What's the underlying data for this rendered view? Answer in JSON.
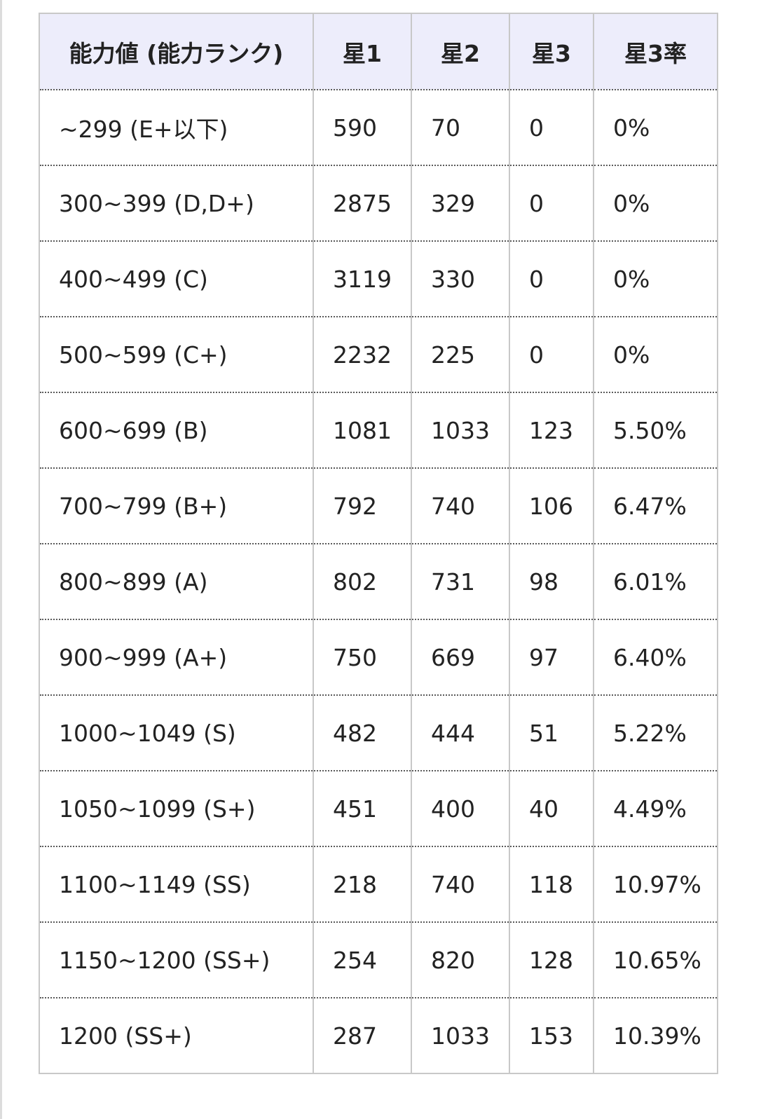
{
  "table": {
    "headers": [
      "能力値 (能力ランク)",
      "星1",
      "星2",
      "星3",
      "星3率"
    ],
    "rows": [
      [
        "~299 (E+以下)",
        "590",
        "70",
        "0",
        "0%"
      ],
      [
        "300~399 (D,D+)",
        "2875",
        "329",
        "0",
        "0%"
      ],
      [
        "400~499 (C)",
        "3119",
        "330",
        "0",
        "0%"
      ],
      [
        "500~599 (C+)",
        "2232",
        "225",
        "0",
        "0%"
      ],
      [
        "600~699 (B)",
        "1081",
        "1033",
        "123",
        "5.50%"
      ],
      [
        "700~799 (B+)",
        "792",
        "740",
        "106",
        "6.47%"
      ],
      [
        "800~899 (A)",
        "802",
        "731",
        "98",
        "6.01%"
      ],
      [
        "900~999 (A+)",
        "750",
        "669",
        "97",
        "6.40%"
      ],
      [
        "1000~1049 (S)",
        "482",
        "444",
        "51",
        "5.22%"
      ],
      [
        "1050~1099 (S+)",
        "451",
        "400",
        "40",
        "4.49%"
      ],
      [
        "1100~1149 (SS)",
        "218",
        "740",
        "118",
        "10.97%"
      ],
      [
        "1150~1200 (SS+)",
        "254",
        "820",
        "128",
        "10.65%"
      ],
      [
        "1200 (SS+)",
        "287",
        "1033",
        "153",
        "10.39%"
      ]
    ]
  },
  "colors": {
    "header_background": "#ededfb",
    "border": "#c8c8c8",
    "row_divider": "#5a5a5a",
    "text": "#222222"
  }
}
